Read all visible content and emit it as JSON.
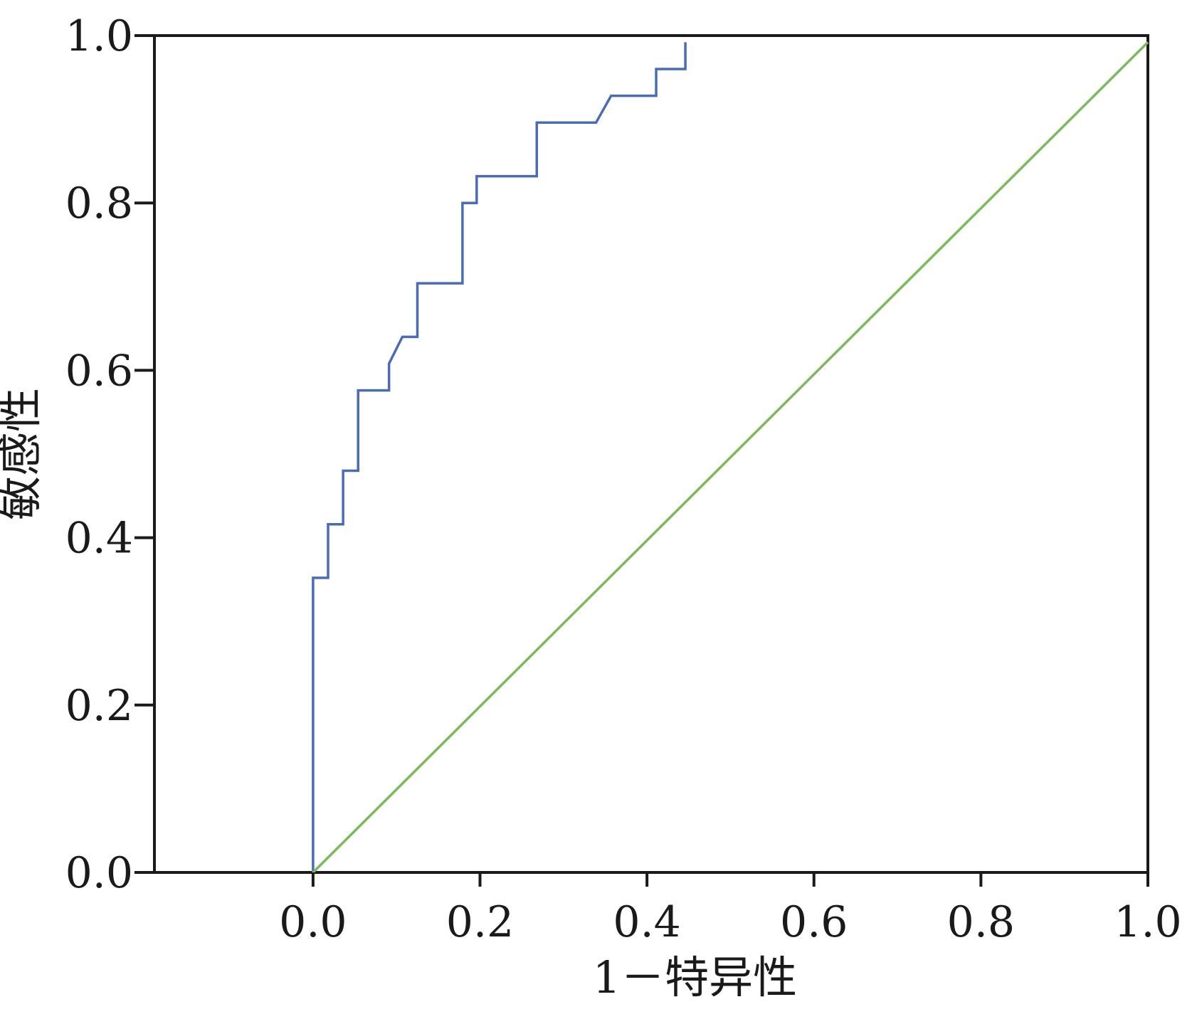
{
  "chart_data": {
    "type": "line",
    "title": "",
    "xlabel": "1－特异性",
    "ylabel": "敏感性",
    "xlim": [
      -0.19,
      1.0
    ],
    "ylim": [
      0.0,
      1.0
    ],
    "x_ticks": [
      {
        "value": 0.0,
        "label": "0.0"
      },
      {
        "value": 0.2,
        "label": "0.2"
      },
      {
        "value": 0.4,
        "label": "0.4"
      },
      {
        "value": 0.6,
        "label": "0.6"
      },
      {
        "value": 0.8,
        "label": "0.8"
      },
      {
        "value": 1.0,
        "label": "1.0"
      }
    ],
    "y_ticks": [
      {
        "value": 0.0,
        "label": "0.0"
      },
      {
        "value": 0.2,
        "label": "0.2"
      },
      {
        "value": 0.4,
        "label": "0.4"
      },
      {
        "value": 0.6,
        "label": "0.6"
      },
      {
        "value": 0.8,
        "label": "0.8"
      },
      {
        "value": 1.0,
        "label": "1.0"
      }
    ],
    "grid": false,
    "legend": "none",
    "series": [
      {
        "color": "#4a6bb5",
        "points": [
          [
            0.0,
            0.0
          ],
          [
            0.0,
            0.352
          ],
          [
            0.018,
            0.352
          ],
          [
            0.018,
            0.416
          ],
          [
            0.036,
            0.416
          ],
          [
            0.036,
            0.48
          ],
          [
            0.054,
            0.48
          ],
          [
            0.054,
            0.576
          ],
          [
            0.091,
            0.576
          ],
          [
            0.091,
            0.608
          ],
          [
            0.107,
            0.64
          ],
          [
            0.125,
            0.64
          ],
          [
            0.125,
            0.704
          ],
          [
            0.179,
            0.704
          ],
          [
            0.179,
            0.8
          ],
          [
            0.196,
            0.8
          ],
          [
            0.196,
            0.832
          ],
          [
            0.268,
            0.832
          ],
          [
            0.268,
            0.896
          ],
          [
            0.339,
            0.896
          ],
          [
            0.357,
            0.928
          ],
          [
            0.411,
            0.928
          ],
          [
            0.411,
            0.96
          ],
          [
            0.446,
            0.96
          ],
          [
            0.446,
            0.992
          ]
        ]
      },
      {
        "color": "#7cb95a",
        "points": [
          [
            0.0,
            0.0
          ],
          [
            1.0,
            0.992
          ]
        ]
      }
    ]
  }
}
